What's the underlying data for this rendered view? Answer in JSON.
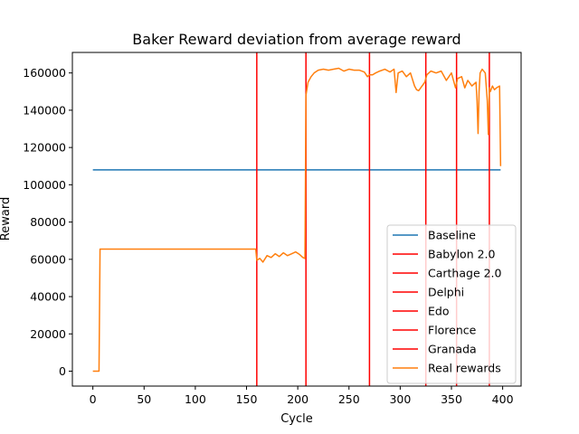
{
  "chart_data": {
    "type": "line",
    "title": "Baker Reward deviation from average reward",
    "xlabel": "Cycle",
    "ylabel": "Reward",
    "xlim": [
      -20,
      418
    ],
    "ylim": [
      -8000,
      171000
    ],
    "xticks": [
      0,
      50,
      100,
      150,
      200,
      250,
      300,
      350,
      400
    ],
    "yticks": [
      0,
      20000,
      40000,
      60000,
      80000,
      100000,
      120000,
      140000,
      160000
    ],
    "grid": false,
    "legend_position": "lower right",
    "baseline": {
      "name": "Baseline",
      "color": "#1f77b4",
      "x": [
        0,
        398
      ],
      "y": [
        108000,
        108000
      ]
    },
    "vertical_lines": [
      {
        "name": "Babylon 2.0",
        "x": 160,
        "color": "#ff0000"
      },
      {
        "name": "Carthage 2.0",
        "x": 208,
        "color": "#ff0000"
      },
      {
        "name": "Delphi",
        "x": 270,
        "color": "#ff0000"
      },
      {
        "name": "Edo",
        "x": 325,
        "color": "#ff0000"
      },
      {
        "name": "Florence",
        "x": 355,
        "color": "#ff0000"
      },
      {
        "name": "Granada",
        "x": 387,
        "color": "#ff0000"
      }
    ],
    "series": [
      {
        "name": "Real rewards",
        "color": "#ff7f0e",
        "x": [
          0,
          6,
          7,
          50,
          100,
          159,
          160,
          163,
          166,
          170,
          174,
          178,
          182,
          186,
          190,
          194,
          198,
          202,
          205,
          207,
          208,
          210,
          213,
          216,
          220,
          225,
          230,
          235,
          240,
          245,
          250,
          255,
          260,
          265,
          268,
          270,
          273,
          276,
          280,
          285,
          290,
          294,
          296,
          298,
          302,
          306,
          310,
          314,
          316,
          318,
          320,
          324,
          326,
          330,
          335,
          340,
          345,
          350,
          354,
          356,
          360,
          363,
          366,
          370,
          374,
          375,
          376,
          377,
          378,
          380,
          383,
          385,
          386,
          387,
          388,
          390,
          392,
          394,
          397,
          398
        ],
        "y": [
          0,
          0,
          65500,
          65500,
          65500,
          65500,
          59500,
          60500,
          58500,
          62000,
          61000,
          63000,
          61500,
          63500,
          62000,
          63000,
          64000,
          62500,
          61000,
          60500,
          148000,
          155000,
          158000,
          160000,
          161500,
          162000,
          161500,
          162000,
          162500,
          161000,
          162000,
          161500,
          161500,
          160500,
          158000,
          159000,
          159000,
          160000,
          161000,
          162000,
          160500,
          162000,
          149500,
          160000,
          161000,
          158000,
          160000,
          153000,
          151000,
          150500,
          152000,
          155000,
          159000,
          161000,
          160000,
          161000,
          156000,
          160000,
          152000,
          157000,
          158000,
          152000,
          156000,
          153000,
          155000,
          145000,
          127500,
          150000,
          160000,
          162000,
          160000,
          145000,
          127000,
          152000,
          150000,
          153000,
          151000,
          152000,
          153000,
          110000
        ]
      }
    ],
    "legend": [
      "Baseline",
      "Babylon 2.0",
      "Carthage 2.0",
      "Delphi",
      "Edo",
      "Florence",
      "Granada",
      "Real rewards"
    ]
  }
}
